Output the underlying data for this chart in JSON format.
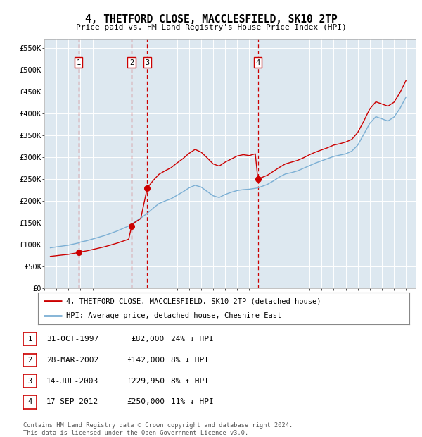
{
  "title": "4, THETFORD CLOSE, MACCLESFIELD, SK10 2TP",
  "subtitle": "Price paid vs. HM Land Registry's House Price Index (HPI)",
  "footer": "Contains HM Land Registry data © Crown copyright and database right 2024.\nThis data is licensed under the Open Government Licence v3.0.",
  "legend_line1": "4, THETFORD CLOSE, MACCLESFIELD, SK10 2TP (detached house)",
  "legend_line2": "HPI: Average price, detached house, Cheshire East",
  "table": [
    {
      "num": "1",
      "date": "31-OCT-1997",
      "price": "£82,000",
      "hpi": "24% ↓ HPI"
    },
    {
      "num": "2",
      "date": "28-MAR-2002",
      "price": "£142,000",
      "hpi": "8% ↓ HPI"
    },
    {
      "num": "3",
      "date": "14-JUL-2003",
      "price": "£229,950",
      "hpi": "8% ↑ HPI"
    },
    {
      "num": "4",
      "date": "17-SEP-2012",
      "price": "£250,000",
      "hpi": "11% ↓ HPI"
    }
  ],
  "sales": [
    {
      "year": 1997.83,
      "price": 82000,
      "label": "1"
    },
    {
      "year": 2002.24,
      "price": 142000,
      "label": "2"
    },
    {
      "year": 2003.54,
      "price": 229950,
      "label": "3"
    },
    {
      "year": 2012.71,
      "price": 250000,
      "label": "4"
    }
  ],
  "hpi_color": "#7bafd4",
  "sale_color": "#cc0000",
  "dot_color": "#cc0000",
  "vline_color": "#cc0000",
  "background_chart": "#dde8f0",
  "background_fig": "#ffffff",
  "ylim": [
    0,
    570000
  ],
  "yticks": [
    0,
    50000,
    100000,
    150000,
    200000,
    250000,
    300000,
    350000,
    400000,
    450000,
    500000,
    550000
  ],
  "xlim_start": 1995.0,
  "xlim_end": 2025.8
}
